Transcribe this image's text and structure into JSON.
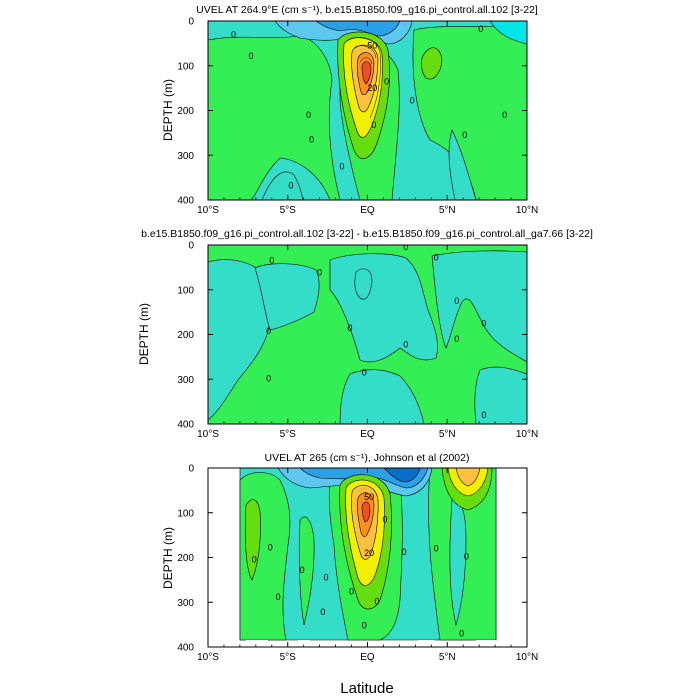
{
  "figure": {
    "xlabel": "Latitude",
    "colors": {
      "deep_blue": "#0a6ec8",
      "blue": "#2aa0e6",
      "light_blue": "#5cc8f0",
      "cyan": "#00e6e6",
      "aqua": "#33ddc8",
      "green_light": "#22e68c",
      "green": "#33ee55",
      "lime": "#66dd11",
      "yellow": "#f0f000",
      "orange_light": "#ffc040",
      "orange": "#ff9020",
      "red_orange": "#f05020"
    }
  },
  "chart_data": [
    {
      "type": "contour",
      "title": "UVEL AT 264.9°E (cm s⁻¹), b.e15.B1850.f09_g16.pi_control.all.102 [3-22]",
      "ylabel": "DEPTH (m)",
      "xlim": [
        -10,
        10
      ],
      "ylim": [
        0,
        400
      ],
      "y_inverted": true,
      "x_ticks": [
        "10°S",
        "5°S",
        "EQ",
        "5°N",
        "10°N"
      ],
      "x_tick_values": [
        -10,
        -5,
        0,
        5,
        10
      ],
      "y_ticks": [
        "0",
        "100",
        "200",
        "300",
        "400"
      ],
      "y_tick_values": [
        0,
        100,
        200,
        300,
        400
      ],
      "contour_labels": [
        {
          "text": "0",
          "lat": -8.4,
          "depth": 30
        },
        {
          "text": "0",
          "lat": -7.3,
          "depth": 78
        },
        {
          "text": "0",
          "lat": -3.5,
          "depth": 265
        },
        {
          "text": "0",
          "lat": -4.8,
          "depth": 368
        },
        {
          "text": "0",
          "lat": -1.6,
          "depth": 325
        },
        {
          "text": "0",
          "lat": -3.7,
          "depth": 210
        },
        {
          "text": "0",
          "lat": 1.2,
          "depth": 135
        },
        {
          "text": "0",
          "lat": 2.8,
          "depth": 178
        },
        {
          "text": "0",
          "lat": 0.4,
          "depth": 232
        },
        {
          "text": "0",
          "lat": 6.1,
          "depth": 255
        },
        {
          "text": "0",
          "lat": 7.1,
          "depth": 18
        },
        {
          "text": "0",
          "lat": 8.6,
          "depth": 210
        },
        {
          "text": "50",
          "lat": 0.3,
          "depth": 55
        },
        {
          "text": "20",
          "lat": 0.3,
          "depth": 150
        }
      ]
    },
    {
      "type": "contour",
      "title": "b.e15.B1850.f09_g16.pi_control.all.102 [3-22] - b.e15.B1850.f09_g16.pi_control.all_ga7.66 [3-22]",
      "ylabel": "DEPTH (m)",
      "xlim": [
        -10,
        10
      ],
      "ylim": [
        0,
        400
      ],
      "y_inverted": true,
      "x_ticks": [
        "10°S",
        "5°S",
        "EQ",
        "5°N",
        "10°N"
      ],
      "x_tick_values": [
        -10,
        -5,
        0,
        5,
        10
      ],
      "y_ticks": [
        "0",
        "100",
        "200",
        "300",
        "400"
      ],
      "y_tick_values": [
        0,
        100,
        200,
        300,
        400
      ],
      "contour_labels": [
        {
          "text": "0",
          "lat": -6.0,
          "depth": 35
        },
        {
          "text": "0",
          "lat": -3.0,
          "depth": 62
        },
        {
          "text": "0",
          "lat": -6.2,
          "depth": 192
        },
        {
          "text": "0",
          "lat": -1.1,
          "depth": 185
        },
        {
          "text": "0",
          "lat": -6.2,
          "depth": 298
        },
        {
          "text": "0",
          "lat": -0.2,
          "depth": 285
        },
        {
          "text": "0",
          "lat": 2.4,
          "depth": 222
        },
        {
          "text": "0",
          "lat": 4.3,
          "depth": 28
        },
        {
          "text": "0",
          "lat": 5.6,
          "depth": 125
        },
        {
          "text": "0",
          "lat": 5.6,
          "depth": 210
        },
        {
          "text": "0",
          "lat": 7.3,
          "depth": 175
        },
        {
          "text": "0",
          "lat": 7.3,
          "depth": 380
        },
        {
          "text": "0",
          "lat": 2.4,
          "depth": 5
        }
      ]
    },
    {
      "type": "contour",
      "title": "UVEL AT 265 (cm s⁻¹), Johnson et al (2002)",
      "ylabel": "DEPTH (m)",
      "xlim": [
        -10,
        10
      ],
      "ylim": [
        0,
        400
      ],
      "y_inverted": true,
      "x_ticks": [
        "10°S",
        "5°S",
        "EQ",
        "5°N",
        "10°N"
      ],
      "x_tick_values": [
        -10,
        -5,
        0,
        5,
        10
      ],
      "y_ticks": [
        "0",
        "100",
        "200",
        "300",
        "400"
      ],
      "y_tick_values": [
        0,
        100,
        200,
        300,
        400
      ],
      "data_extent_lat": [
        -8,
        8
      ],
      "contour_labels": [
        {
          "text": "0",
          "lat": -7.1,
          "depth": 205
        },
        {
          "text": "0",
          "lat": -6.1,
          "depth": 178
        },
        {
          "text": "0",
          "lat": -4.1,
          "depth": 228
        },
        {
          "text": "0",
          "lat": -5.6,
          "depth": 288
        },
        {
          "text": "0",
          "lat": -2.8,
          "depth": 322
        },
        {
          "text": "0",
          "lat": -2.6,
          "depth": 245
        },
        {
          "text": "0",
          "lat": -1.0,
          "depth": 276
        },
        {
          "text": "0",
          "lat": 1.1,
          "depth": 115
        },
        {
          "text": "0",
          "lat": 2.3,
          "depth": 188
        },
        {
          "text": "0",
          "lat": 4.3,
          "depth": 180
        },
        {
          "text": "0",
          "lat": 6.2,
          "depth": 198
        },
        {
          "text": "0",
          "lat": 5.9,
          "depth": 370
        },
        {
          "text": "0",
          "lat": 0.6,
          "depth": 298
        },
        {
          "text": "0",
          "lat": -0.2,
          "depth": 352
        },
        {
          "text": "50",
          "lat": 0.1,
          "depth": 65
        },
        {
          "text": "20",
          "lat": 0.1,
          "depth": 190
        }
      ]
    }
  ]
}
